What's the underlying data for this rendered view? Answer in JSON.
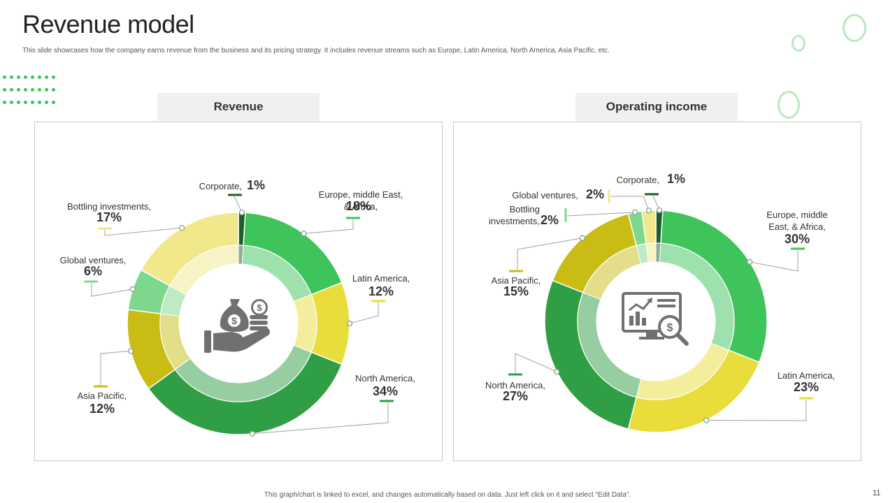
{
  "page": {
    "title": "Revenue model",
    "subtitle": "This slide showcases how the company earns revenue from the business and its pricing strategy. It includes revenue streams such as Europe,  Latin America, North America, Asia Pacific, etc.",
    "footnote": "This graph/chart is linked to excel, and changes automatically based on data. Just left click on it and select “Edit Data”.",
    "page_number": "11"
  },
  "colors": {
    "accent_yellow": "#e8dd3a",
    "accent_green": "#3ec45a",
    "tab_bg": "#f0f0f0",
    "icon_gray": "#707070"
  },
  "chart_data": [
    {
      "type": "pie",
      "title": "Revenue",
      "center_icon": "money-bag-hand-icon",
      "slices": [
        {
          "name": "Corporate",
          "value": 1,
          "color": "#1e5e2e",
          "label_lines": [
            "Corporate,"
          ],
          "pct_label": "1%"
        },
        {
          "name": "Europe, middle East, & Africa",
          "value": 18,
          "color": "#3ec45a",
          "label_lines": [
            "Europe, middle East,",
            "& Africa,"
          ],
          "pct_label": "18%"
        },
        {
          "name": "Latin America",
          "value": 12,
          "color": "#e8dd3a",
          "label_lines": [
            "Latin America,"
          ],
          "pct_label": "12%"
        },
        {
          "name": "North America",
          "value": 34,
          "color": "#2f9e44",
          "label_lines": [
            "North America,"
          ],
          "pct_label": "34%"
        },
        {
          "name": "Asia Pacific",
          "value": 12,
          "color": "#c9bc14",
          "label_lines": [
            "Asia Pacific,"
          ],
          "pct_label": "12%"
        },
        {
          "name": "Global ventures",
          "value": 6,
          "color": "#7dd88e",
          "label_lines": [
            "Global ventures,"
          ],
          "pct_label": "6%"
        },
        {
          "name": "Bottling investments",
          "value": 17,
          "color": "#f0e88a",
          "label_lines": [
            "Bottling investments,"
          ],
          "pct_label": "17%"
        }
      ]
    },
    {
      "type": "pie",
      "title": "Operating income",
      "center_icon": "analytics-monitor-icon",
      "slices": [
        {
          "name": "Corporate",
          "value": 1,
          "color": "#1e5e2e",
          "label_lines": [
            "Corporate,"
          ],
          "pct_label": "1%"
        },
        {
          "name": "Europe, middle East, & Africa",
          "value": 30,
          "color": "#3ec45a",
          "label_lines": [
            "Europe, middle",
            "East, & Africa,"
          ],
          "pct_label": "30%"
        },
        {
          "name": "Latin America",
          "value": 23,
          "color": "#e8dd3a",
          "label_lines": [
            "Latin America,"
          ],
          "pct_label": "23%"
        },
        {
          "name": "North America",
          "value": 27,
          "color": "#2f9e44",
          "label_lines": [
            "North America,"
          ],
          "pct_label": "27%"
        },
        {
          "name": "Asia Pacific",
          "value": 15,
          "color": "#c9bc14",
          "label_lines": [
            "Asia Pacific,"
          ],
          "pct_label": "15%"
        },
        {
          "name": "Bottling investments",
          "value": 2,
          "color": "#7dd88e",
          "label_lines": [
            "Bottling",
            "investments,"
          ],
          "pct_label": "2%"
        },
        {
          "name": "Global ventures",
          "value": 2,
          "color": "#f0e88a",
          "label_lines": [
            "Global ventures,"
          ],
          "pct_label": "2%"
        }
      ]
    }
  ]
}
